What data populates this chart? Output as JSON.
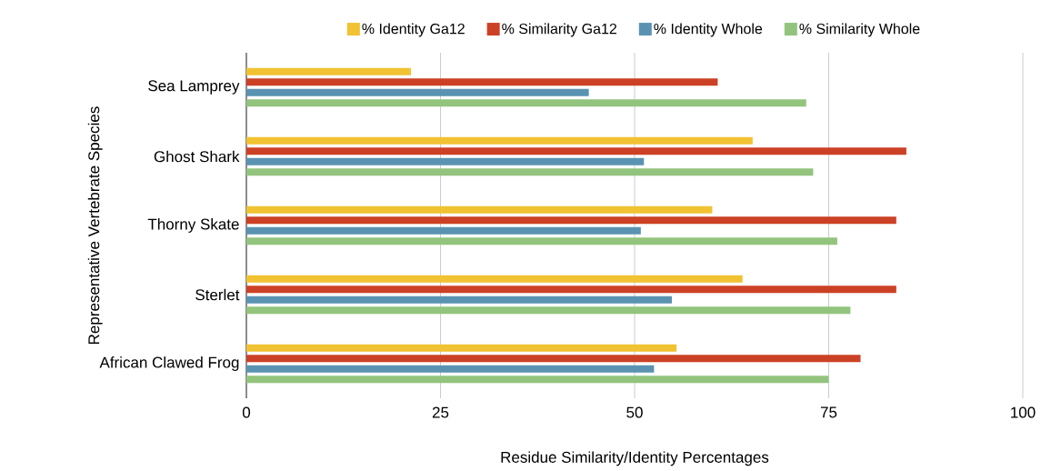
{
  "chart_data": {
    "type": "bar",
    "orientation": "horizontal",
    "xlabel": "Residue Similarity/Identity Percentages",
    "ylabel": "Representative Vertebrate Species",
    "categories": [
      "Sea Lamprey",
      "Ghost Shark",
      "Thorny Skate",
      "Sterlet",
      "African Clawed Frog"
    ],
    "series": [
      {
        "name": "% Identity Ga12",
        "color": "#f1c232",
        "values": [
          21.2,
          65.2,
          60.0,
          63.9,
          55.4
        ]
      },
      {
        "name": "% Similarity Ga12",
        "color": "#cc4125",
        "values": [
          60.7,
          85.0,
          83.7,
          83.7,
          79.1
        ]
      },
      {
        "name": "% Identity Whole",
        "color": "#5a93b1",
        "values": [
          44.1,
          51.2,
          50.8,
          54.8,
          52.5
        ]
      },
      {
        "name": "% Similarity Whole",
        "color": "#93c47d",
        "values": [
          72.1,
          73.0,
          76.1,
          77.8,
          75.0
        ]
      }
    ],
    "xlim": [
      0,
      100
    ],
    "xticks": [
      0,
      25,
      50,
      75,
      100
    ],
    "grid": "x",
    "legend": "top"
  }
}
